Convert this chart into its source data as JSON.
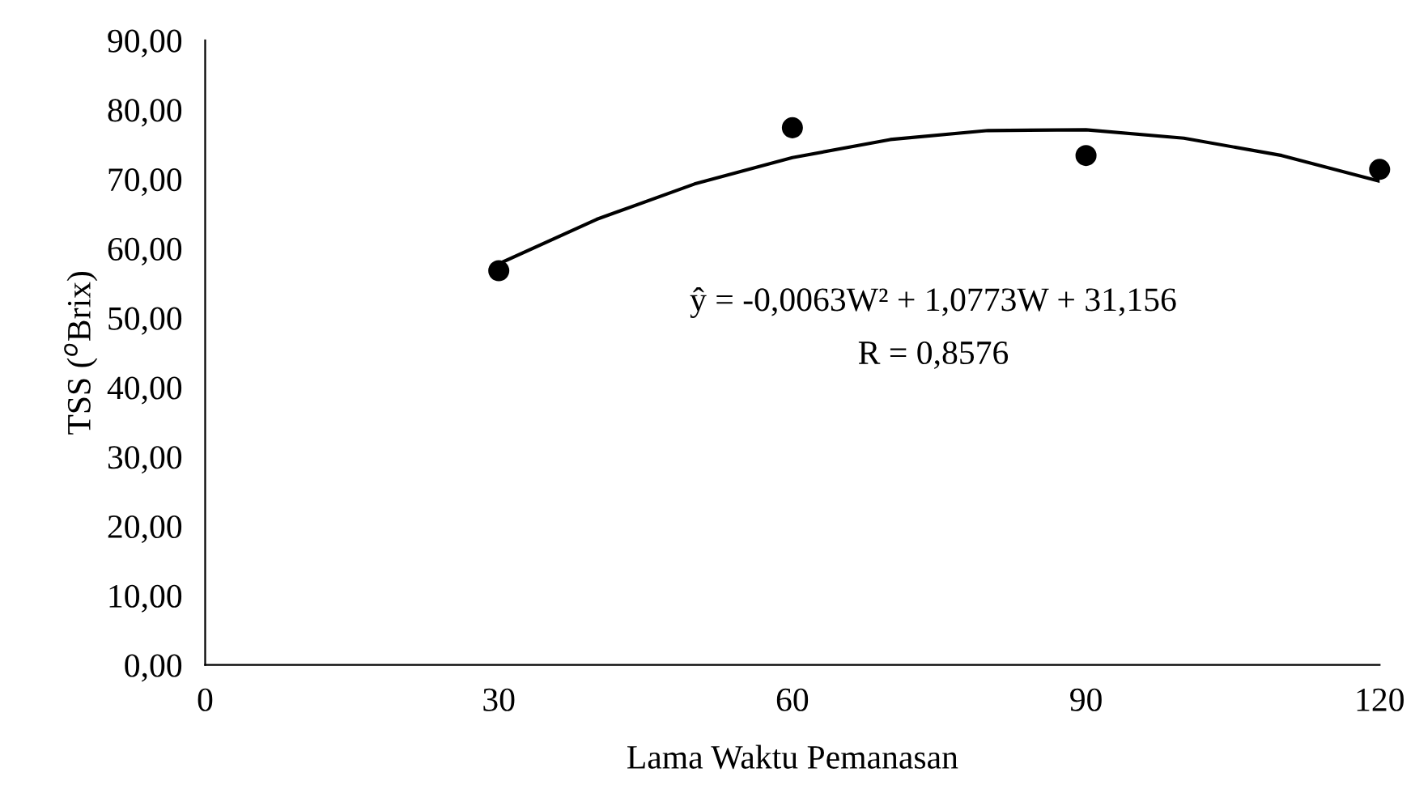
{
  "chart_data": {
    "type": "scatter",
    "xlabel": "Lama Waktu Pemanasan",
    "ylabel": "TSS ($^{o}$Brix)",
    "xlim": [
      0,
      120
    ],
    "xticks": [
      0,
      30,
      60,
      90,
      120
    ],
    "ylim": [
      0,
      90
    ],
    "yticks": [
      {
        "value": 0,
        "label": "0,00"
      },
      {
        "value": 10,
        "label": "10,00"
      },
      {
        "value": 20,
        "label": "20,00"
      },
      {
        "value": 30,
        "label": "30,00"
      },
      {
        "value": 40,
        "label": "40,00"
      },
      {
        "value": 50,
        "label": "50,00"
      },
      {
        "value": 60,
        "label": "60,00"
      },
      {
        "value": 70,
        "label": "70,00"
      },
      {
        "value": 80,
        "label": "80,00"
      },
      {
        "value": 90,
        "label": "90,00"
      }
    ],
    "grid": false,
    "legend": false,
    "series": [
      {
        "color": "#000000",
        "marker": "circle",
        "x": [
          30,
          60,
          90,
          120
        ],
        "values": [
          56.8,
          77.4,
          73.4,
          71.4
        ]
      },
      {
        "type": "line",
        "color": "#000000",
        "marker": "none",
        "line_style": "solid",
        "x": [
          30,
          40,
          50,
          60,
          70,
          80,
          90,
          100,
          110,
          120
        ],
        "values": [
          57.8,
          64.2,
          69.3,
          73.1,
          75.7,
          77.0,
          77.1,
          75.9,
          73.4,
          69.7
        ]
      }
    ],
    "annotations": [
      "ŷ = -0,0063W² + 1,0773W + 31,156",
      "R = 0,8576"
    ]
  }
}
